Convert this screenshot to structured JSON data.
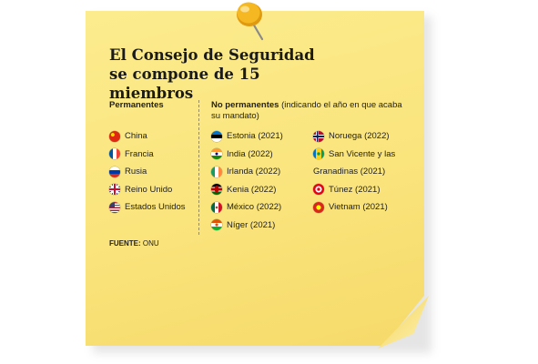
{
  "title": {
    "line1": "El Consejo de Seguridad",
    "line2": "se compone de 15 miembros"
  },
  "permanentes": {
    "header": "Permanentes",
    "members": [
      {
        "name": "China",
        "flag": "china-flag-icon"
      },
      {
        "name": "Francia",
        "flag": "france-flag-icon"
      },
      {
        "name": "Rusia",
        "flag": "russia-flag-icon"
      },
      {
        "name": "Reino Unido",
        "flag": "uk-flag-icon"
      },
      {
        "name": "Estados Unidos",
        "flag": "usa-flag-icon"
      }
    ]
  },
  "no_permanentes": {
    "header": "No permanentes",
    "note": "(indicando el año en que acaba su mandato)",
    "left": [
      {
        "name": "Estonia (2021)",
        "flag": "estonia-flag-icon"
      },
      {
        "name": "India (2022)",
        "flag": "india-flag-icon"
      },
      {
        "name": "Irlanda (2022)",
        "flag": "ireland-flag-icon"
      },
      {
        "name": "Kenia (2022)",
        "flag": "kenya-flag-icon"
      },
      {
        "name": "México (2022)",
        "flag": "mexico-flag-icon"
      },
      {
        "name": "Níger (2021)",
        "flag": "niger-flag-icon"
      }
    ],
    "right": [
      {
        "name": "Noruega (2022)",
        "flag": "norway-flag-icon"
      },
      {
        "name": "San Vicente y las",
        "flag": "saint-vincent-flag-icon"
      },
      {
        "name": "Granadinas (2021)",
        "flag": ""
      },
      {
        "name": "Túnez (2021)",
        "flag": "tunisia-flag-icon"
      },
      {
        "name": "Vietnam (2021)",
        "flag": "vietnam-flag-icon"
      }
    ]
  },
  "source": {
    "label": "FUENTE:",
    "value": "ONU"
  },
  "colors": {
    "note": "#fae47c",
    "pin": "#f2b21a",
    "text": "#222222"
  }
}
